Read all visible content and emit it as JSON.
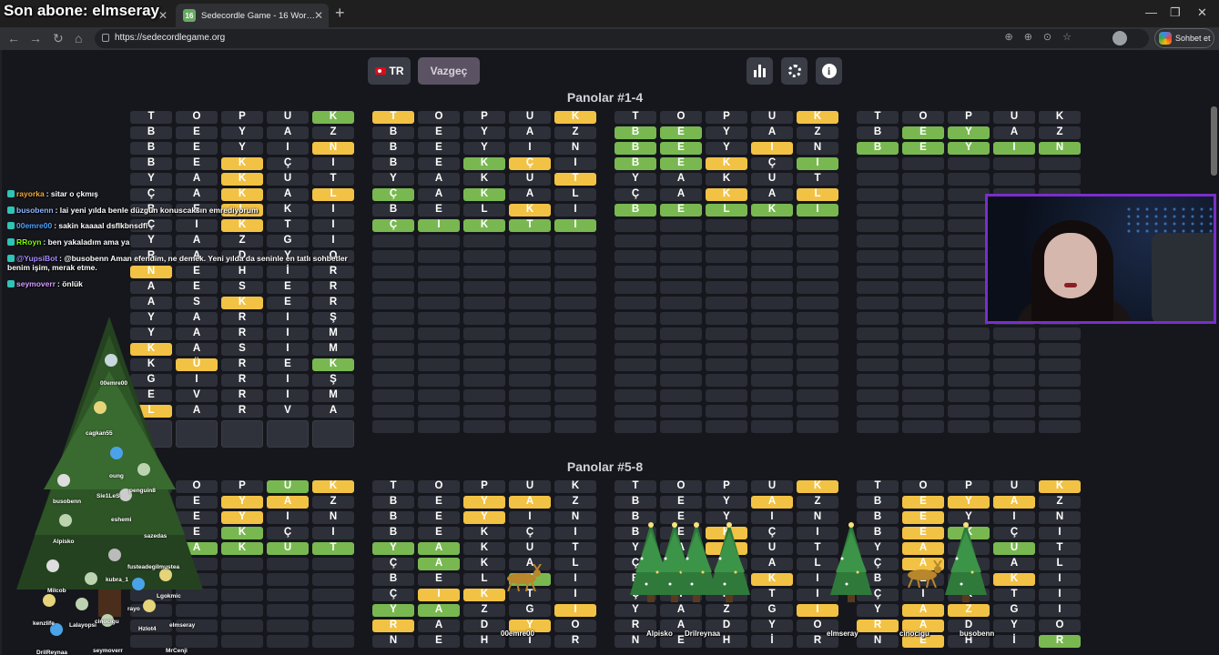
{
  "stream_title": "Son abone: elmseray",
  "browser": {
    "tabs": [
      {
        "label": "",
        "active": false
      },
      {
        "label": "Sedecordle Game - 16 Words Wordle",
        "active": true,
        "favicon": "16"
      }
    ],
    "url": "https://sedecordlegame.org",
    "chat_button": "Sohbet et"
  },
  "game": {
    "lang_button": "TR",
    "giveup_button": "Vazgeç",
    "section_titles": [
      "Panolar #1-4",
      "Panolar #5-8"
    ],
    "boards_1_4": [
      {
        "rows": [
          [
            "T",
            "O",
            "P",
            "U",
            "K"
          ],
          [
            "B",
            "E",
            "Y",
            "A",
            "Z"
          ],
          [
            "B",
            "E",
            "Y",
            "I",
            "N"
          ],
          [
            "B",
            "E",
            "K",
            "Ç",
            "I"
          ],
          [
            "Y",
            "A",
            "K",
            "U",
            "T"
          ],
          [
            "Ç",
            "A",
            "K",
            "A",
            "L"
          ],
          [
            "B",
            "E",
            "L",
            "K",
            "I"
          ],
          [
            "Ç",
            "I",
            "K",
            "T",
            "I"
          ],
          [
            "Y",
            "A",
            "Z",
            "G",
            "I"
          ],
          [
            "R",
            "A",
            "D",
            "Y",
            "O"
          ],
          [
            "N",
            "E",
            "H",
            "İ",
            "R"
          ],
          [
            "A",
            "E",
            "S",
            "E",
            "R"
          ],
          [
            "A",
            "S",
            "K",
            "E",
            "R"
          ],
          [
            "Y",
            "A",
            "R",
            "I",
            "Ş"
          ],
          [
            "Y",
            "A",
            "R",
            "I",
            "M"
          ],
          [
            "K",
            "A",
            "S",
            "I",
            "M"
          ],
          [
            "K",
            "Ü",
            "R",
            "E",
            "K"
          ],
          [
            "G",
            "I",
            "R",
            "I",
            "Ş"
          ],
          [
            "E",
            "V",
            "R",
            "I",
            "M"
          ],
          [
            "L",
            "A",
            "R",
            "V",
            "A"
          ]
        ],
        "colors": [
          "bbbbg",
          "bbbbb",
          "bbbby",
          "bbybb",
          "bbybb",
          "bbyby",
          "bbybb",
          "bbybb",
          "bbbbb",
          "bbbbb",
          "ybbbb",
          "bbbbb",
          "bbybb",
          "bbbbb",
          "bbbbb",
          "ybbbb",
          "bybbg",
          "bbbbb",
          "bbbbb",
          "ybbbb"
        ]
      },
      {
        "rows": [
          [
            "T",
            "O",
            "P",
            "U",
            "K"
          ],
          [
            "B",
            "E",
            "Y",
            "A",
            "Z"
          ],
          [
            "B",
            "E",
            "Y",
            "I",
            "N"
          ],
          [
            "B",
            "E",
            "K",
            "Ç",
            "I"
          ],
          [
            "Y",
            "A",
            "K",
            "U",
            "T"
          ],
          [
            "Ç",
            "A",
            "K",
            "A",
            "L"
          ],
          [
            "B",
            "E",
            "L",
            "K",
            "I"
          ],
          [
            "Ç",
            "I",
            "K",
            "T",
            "I"
          ]
        ],
        "colors": [
          "ybbby",
          "bbbbb",
          "bbbbb",
          "bbgyb",
          "bbbby",
          "gbgbb",
          "bbbyb",
          "ggggg"
        ]
      },
      {
        "rows": [
          [
            "T",
            "O",
            "P",
            "U",
            "K"
          ],
          [
            "B",
            "E",
            "Y",
            "A",
            "Z"
          ],
          [
            "B",
            "E",
            "Y",
            "I",
            "N"
          ],
          [
            "B",
            "E",
            "K",
            "Ç",
            "I"
          ],
          [
            "Y",
            "A",
            "K",
            "U",
            "T"
          ],
          [
            "Ç",
            "A",
            "K",
            "A",
            "L"
          ],
          [
            "B",
            "E",
            "L",
            "K",
            "I"
          ]
        ],
        "colors": [
          "bbbby",
          "ggbbb",
          "ggbyb",
          "ggybg",
          "bbbbb",
          "bbyby",
          "ggggg"
        ]
      },
      {
        "rows": [
          [
            "T",
            "O",
            "P",
            "U",
            "K"
          ],
          [
            "B",
            "E",
            "Y",
            "A",
            "Z"
          ],
          [
            "B",
            "E",
            "Y",
            "I",
            "N"
          ]
        ],
        "colors": [
          "bbbbb",
          "bggbb",
          "ggggg"
        ]
      }
    ],
    "boards_5_8": [
      {
        "rows": [
          [
            "T",
            "O",
            "P",
            "U",
            "K"
          ],
          [
            "B",
            "E",
            "Y",
            "A",
            "Z"
          ],
          [
            "B",
            "E",
            "Y",
            "I",
            "N"
          ],
          [
            "B",
            "E",
            "K",
            "Ç",
            "I"
          ],
          [
            "Y",
            "A",
            "K",
            "U",
            "T"
          ]
        ],
        "colors": [
          "bbbgy",
          "bbyyb",
          "bbybb",
          "bbgbb",
          "ggggg"
        ]
      },
      {
        "rows": [
          [
            "T",
            "O",
            "P",
            "U",
            "K"
          ],
          [
            "B",
            "E",
            "Y",
            "A",
            "Z"
          ],
          [
            "B",
            "E",
            "Y",
            "I",
            "N"
          ],
          [
            "B",
            "E",
            "K",
            "Ç",
            "I"
          ],
          [
            "Y",
            "A",
            "K",
            "U",
            "T"
          ],
          [
            "Ç",
            "A",
            "K",
            "A",
            "L"
          ],
          [
            "B",
            "E",
            "L",
            "K",
            "I"
          ],
          [
            "Ç",
            "I",
            "K",
            "T",
            "I"
          ],
          [
            "Y",
            "A",
            "Z",
            "G",
            "I"
          ],
          [
            "R",
            "A",
            "D",
            "Y",
            "O"
          ],
          [
            "N",
            "E",
            "H",
            "İ",
            "R"
          ]
        ],
        "colors": [
          "bbbbb",
          "bbyyb",
          "bbybb",
          "bbbbb",
          "ggbbb",
          "bgbbb",
          "bbbgb",
          "byybb",
          "ggbby",
          "ybbyb",
          "bbbbb"
        ]
      },
      {
        "rows": [
          [
            "T",
            "O",
            "P",
            "U",
            "K"
          ],
          [
            "B",
            "E",
            "Y",
            "A",
            "Z"
          ],
          [
            "B",
            "E",
            "Y",
            "I",
            "N"
          ],
          [
            "B",
            "E",
            "K",
            "Ç",
            "I"
          ],
          [
            "Y",
            "A",
            "K",
            "U",
            "T"
          ],
          [
            "Ç",
            "A",
            "K",
            "A",
            "L"
          ],
          [
            "B",
            "E",
            "L",
            "K",
            "I"
          ],
          [
            "Ç",
            "I",
            "K",
            "T",
            "I"
          ],
          [
            "Y",
            "A",
            "Z",
            "G",
            "I"
          ],
          [
            "R",
            "A",
            "D",
            "Y",
            "O"
          ],
          [
            "N",
            "E",
            "H",
            "İ",
            "R"
          ]
        ],
        "colors": [
          "bbbby",
          "bbbyb",
          "bbbbb",
          "bbybb",
          "bbybb",
          "bbbbb",
          "bbbyb",
          "bbbbb",
          "bbbby",
          "bbbbb",
          "bbbbb"
        ]
      },
      {
        "rows": [
          [
            "T",
            "O",
            "P",
            "U",
            "K"
          ],
          [
            "B",
            "E",
            "Y",
            "A",
            "Z"
          ],
          [
            "B",
            "E",
            "Y",
            "I",
            "N"
          ],
          [
            "B",
            "E",
            "K",
            "Ç",
            "I"
          ],
          [
            "Y",
            "A",
            "K",
            "U",
            "T"
          ],
          [
            "Ç",
            "A",
            "K",
            "A",
            "L"
          ],
          [
            "B",
            "E",
            "L",
            "K",
            "I"
          ],
          [
            "Ç",
            "I",
            "K",
            "T",
            "I"
          ],
          [
            "Y",
            "A",
            "Z",
            "G",
            "I"
          ],
          [
            "R",
            "A",
            "D",
            "Y",
            "O"
          ],
          [
            "N",
            "E",
            "H",
            "İ",
            "R"
          ]
        ],
        "colors": [
          "bbbby",
          "byyyb",
          "bybbb",
          "bygbb",
          "bybgb",
          "bybbb",
          "bbbyb",
          "bbbbb",
          "byybb",
          "yybbb",
          "bybbg"
        ]
      }
    ]
  },
  "chat": [
    {
      "user": "rayorka",
      "color": "#f2a93b",
      "text": ": sitar o çkmış"
    },
    {
      "user": "busobenn",
      "color": "#8fb7ff",
      "text": ": lai yeni yılda benle düzgün konuscaksın emrediyorum"
    },
    {
      "user": "00emre00",
      "color": "#4aa3ff",
      "text": ": sakin kaaaal dsflkbnsdfl"
    },
    {
      "user": "RRoyn",
      "color": "#7cfc00",
      "text": ": ben yakaladım ama ya"
    },
    {
      "user": "@YupsiBot",
      "color": "#a98bff",
      "text": ": @busobenn Aman efendim, ne demek. Yeni yılda da seninle en tatlı sohbetler benim işim, merak etme."
    },
    {
      "user": "seymoverr",
      "color": "#d69cff",
      "text": ": önlük"
    }
  ],
  "tree_labels": [
    "00emre00",
    "cagkan55",
    "oung",
    "Sie1LeS",
    "penguin8",
    "eshemi",
    "busobenn",
    "sazedas",
    "Alpisko",
    "fusteadegilmustea",
    "kubra_1",
    "Milcob",
    "Lgokmic",
    "rayo",
    "kenzlife",
    "Lalayopsi",
    "cinocigu",
    "Hzlot4",
    "elmseray",
    "DrilReynaa",
    "seymoverr",
    "MrCenji"
  ],
  "under_names": [
    "00emre00",
    "Alpisko",
    "Drilreynaa",
    "elmseray",
    "cinocigu",
    "busobenn"
  ],
  "colors": {
    "green": "#79b851",
    "yellow": "#f2c244",
    "tile": "#2e3039",
    "accent": "#7b2ecb"
  }
}
